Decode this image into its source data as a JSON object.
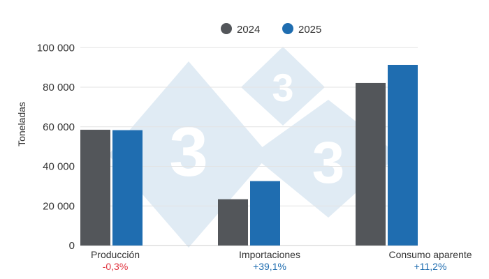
{
  "chart_data": {
    "type": "bar",
    "title": "",
    "xlabel": "",
    "ylabel": "Toneladas",
    "ylim": [
      0,
      100000
    ],
    "yticks": [
      0,
      20000,
      40000,
      60000,
      80000,
      100000
    ],
    "ytick_labels": [
      "0",
      "20 000",
      "40 000",
      "60 000",
      "80 000",
      "100 000"
    ],
    "grid": true,
    "legend_position": "top",
    "categories": [
      "Producción",
      "Importaciones",
      "Consumo aparente"
    ],
    "changes": [
      "-0,3%",
      "+39,1%",
      "+11,2%"
    ],
    "change_colors": [
      "#e0343f",
      "#1f6db0",
      "#1f6db0"
    ],
    "series": [
      {
        "name": "2024",
        "color": "#53565a",
        "values": [
          58500,
          23400,
          82150
        ]
      },
      {
        "name": "2025",
        "color": "#1f6db0",
        "values": [
          58300,
          32550,
          91300
        ]
      }
    ]
  }
}
